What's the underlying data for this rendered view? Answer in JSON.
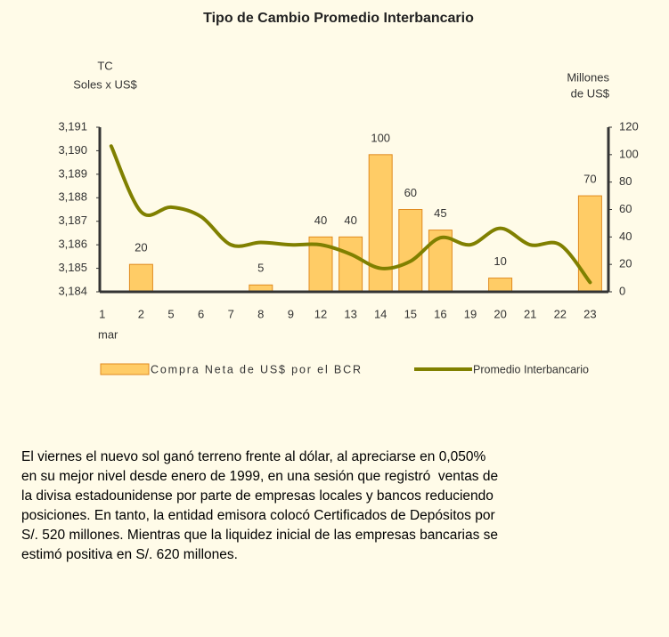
{
  "chart_data": {
    "type": "bar-line",
    "title": "Tipo de Cambio Promedio Interbancario",
    "y_label_lines": [
      "TC",
      "Soles x US$"
    ],
    "y2_label_lines": [
      "Millones",
      "de US$"
    ],
    "x_annotation": "mar",
    "categories": [
      "1",
      "2",
      "5",
      "6",
      "7",
      "8",
      "9",
      "12",
      "13",
      "14",
      "15",
      "16",
      "19",
      "20",
      "21",
      "22",
      "23"
    ],
    "series": [
      {
        "name": "Compra Neta de US$ por el BCR",
        "color": "#ffcc66",
        "axis": "y2",
        "values": [
          null,
          20,
          null,
          null,
          null,
          5,
          null,
          40,
          40,
          100,
          60,
          45,
          null,
          10,
          null,
          null,
          70
        ]
      },
      {
        "name": "Promedio Interbancario",
        "color": "#808000",
        "axis": "y",
        "values": [
          3.1902,
          3.1874,
          3.1876,
          3.1872,
          3.186,
          3.1861,
          3.186,
          3.186,
          3.1856,
          3.185,
          3.1853,
          3.1863,
          3.186,
          3.1867,
          3.186,
          3.186,
          3.1844
        ]
      }
    ],
    "ylim": [
      3.184,
      3.191
    ],
    "yticks": [
      {
        "value": 3.184,
        "label": "3,184"
      },
      {
        "value": 3.185,
        "label": "3,185"
      },
      {
        "value": 3.186,
        "label": "3,186"
      },
      {
        "value": 3.187,
        "label": "3,187"
      },
      {
        "value": 3.188,
        "label": "3,188"
      },
      {
        "value": 3.189,
        "label": "3,189"
      },
      {
        "value": 3.19,
        "label": "3,190"
      },
      {
        "value": 3.191,
        "label": "3,191"
      }
    ],
    "y2lim": [
      0,
      120
    ],
    "y2ticks": [
      0,
      20,
      40,
      60,
      80,
      100,
      120
    ],
    "legend": "bottom"
  },
  "text": {
    "lines": [
      "El viernes el nuevo sol ganó terreno frente al dólar, al apreciarse en 0,050%",
      "en su mejor nivel desde enero de 1999, en una sesión que registró  ventas de",
      "la divisa estadounidense por parte de empresas locales y bancos reduciendo",
      "posiciones. En tanto, la entidad emisora colocó Certificados de Depósitos por",
      "S/. 520 millones. Mientras que la liquidez inicial de las empresas bancarias se",
      "estimó positiva en S/. 620 millones."
    ]
  }
}
